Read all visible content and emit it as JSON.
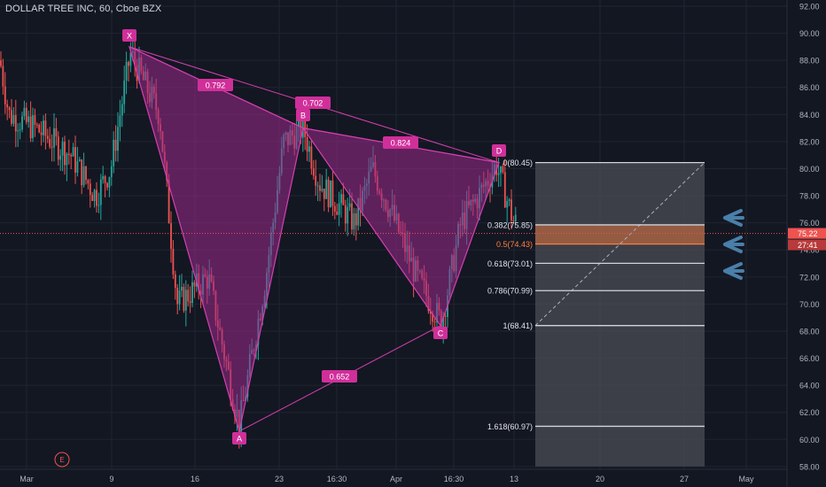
{
  "header": {
    "title": "DOLLAR TREE INC, 60, Cboe BZX"
  },
  "colors": {
    "background": "#131722",
    "grid": "#1f2431",
    "axis_text": "#b2b5be",
    "candle_up": "#26a69a",
    "candle_down": "#ef5350",
    "pattern_fill": "#9c2a8c",
    "pattern_line": "#d63fb0",
    "label_bg": "#d02f9a",
    "fib_zone": "#474a52",
    "fib_line": "#d1d4dc",
    "fib_highlight": "#ff7f3f",
    "price_line": "#ef5350",
    "arrow": "#4a7fa9"
  },
  "chart_data": {
    "type": "candlestick",
    "ylim": [
      58,
      92
    ],
    "y_ticks": [
      "58.00",
      "60.00",
      "62.00",
      "64.00",
      "66.00",
      "68.00",
      "70.00",
      "72.00",
      "74.00",
      "76.00",
      "78.00",
      "80.00",
      "82.00",
      "84.00",
      "86.00",
      "88.00",
      "90.00",
      "92.00"
    ],
    "x_ticks": [
      "Mar",
      "9",
      "16",
      "23",
      "16:30",
      "Apr",
      "16:30",
      "13",
      "20",
      "27",
      "May"
    ],
    "current_price": {
      "value": "75.22",
      "countdown": "27:41"
    },
    "harmonic_pattern": {
      "points": [
        {
          "name": "X",
          "price": 89.0
        },
        {
          "name": "A",
          "price": 60.6
        },
        {
          "name": "B",
          "price": 83.0
        },
        {
          "name": "C",
          "price": 68.41
        },
        {
          "name": "D",
          "price": 80.45
        }
      ],
      "ratios": [
        "0.792",
        "0.702",
        "0.824",
        "0.652"
      ]
    },
    "fibonacci": [
      {
        "label": "0(80.45)",
        "price": 80.45
      },
      {
        "label": "0.382(75.85)",
        "price": 75.85
      },
      {
        "label": "0.5(74.43)",
        "price": 74.43
      },
      {
        "label": "0.618(73.01)",
        "price": 73.01
      },
      {
        "label": "0.786(70.99)",
        "price": 70.99
      },
      {
        "label": "1(68.41)",
        "price": 68.41
      },
      {
        "label": "1.618(60.97)",
        "price": 60.97
      }
    ],
    "event_marker": "E"
  }
}
